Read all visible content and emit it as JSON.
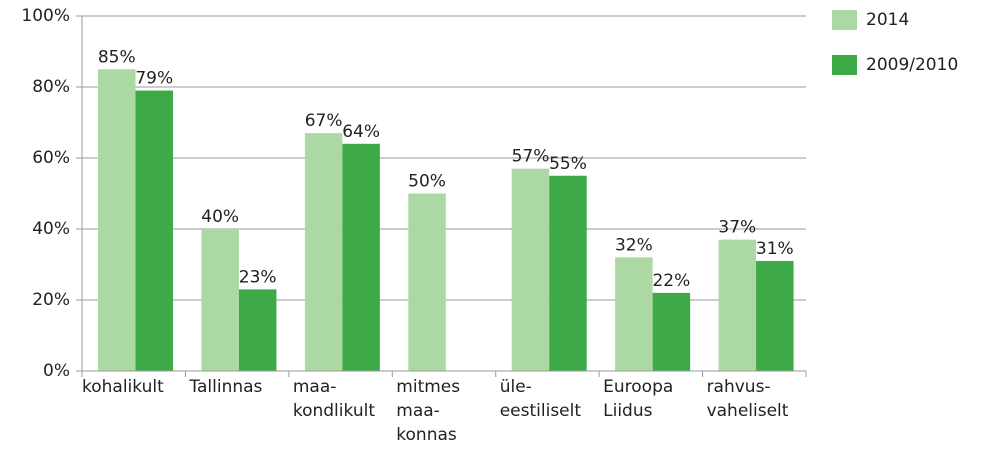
{
  "chart_data": {
    "type": "bar",
    "categories": [
      [
        "kohalikult"
      ],
      [
        "Tallinnas"
      ],
      [
        "maa-",
        "kondlikult"
      ],
      [
        "mitmes",
        "maa-",
        "konnas"
      ],
      [
        "üle-",
        "eestiliselt"
      ],
      [
        "Euroopa",
        "Liidus"
      ],
      [
        "rahvus-",
        "vaheliselt"
      ]
    ],
    "series": [
      {
        "name": "2014",
        "color": "#acd9a3",
        "values": [
          85,
          40,
          67,
          50,
          57,
          32,
          37
        ],
        "value_labels": [
          "85%",
          "40%",
          "67%",
          "50%",
          "57%",
          "32%",
          "37%"
        ]
      },
      {
        "name": "2009/2010",
        "color": "#3daa47",
        "values": [
          79,
          23,
          64,
          null,
          55,
          22,
          31
        ],
        "value_labels": [
          "79%",
          "23%",
          "64%",
          null,
          "55%",
          "22%",
          "31%"
        ]
      }
    ],
    "ylim": [
      0,
      100
    ],
    "yticks": [
      {
        "value": 0,
        "label": "0%"
      },
      {
        "value": 20,
        "label": "20%"
      },
      {
        "value": 40,
        "label": "40%"
      },
      {
        "value": 60,
        "label": "60%"
      },
      {
        "value": 80,
        "label": "80%"
      },
      {
        "value": 100,
        "label": "100%"
      }
    ],
    "grid": true,
    "legend": "right"
  }
}
